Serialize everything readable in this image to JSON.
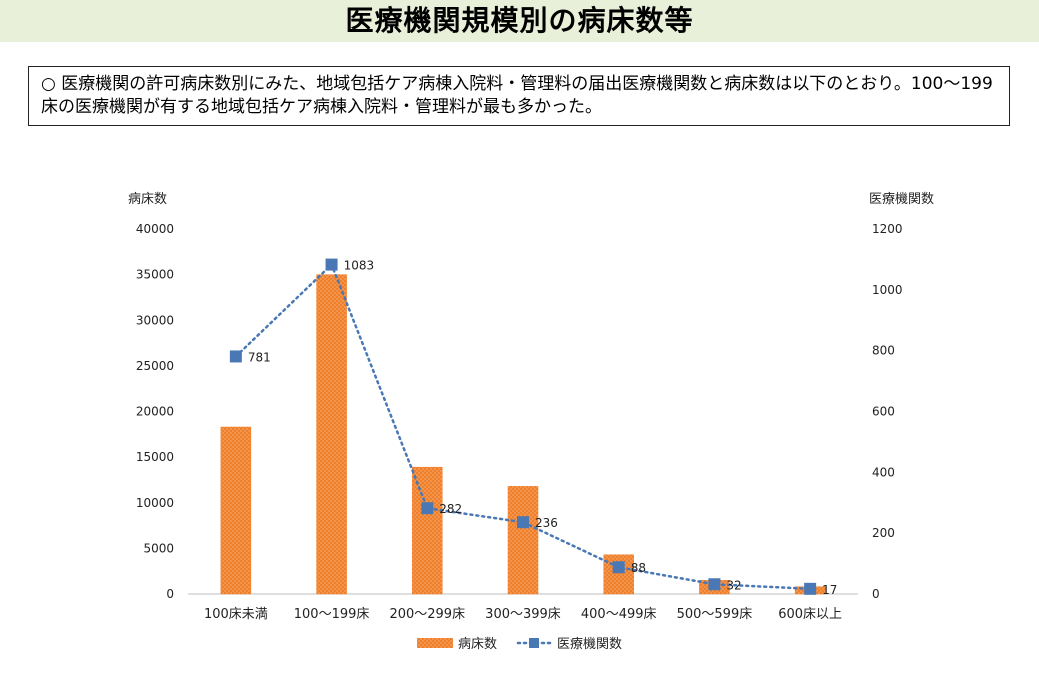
{
  "page": {
    "title": "医療機関規模別の病床数等",
    "summary": "○ 医療機関の許可病床数別にみた、地域包括ケア病棟入院料・管理料の届出医療機関数と病床数は以下のとおり。100～199床の医療機関が有する地域包括ケア病棟入院料・管理料が最も多かった。"
  },
  "chart_data": {
    "type": "bar",
    "categories": [
      "100床未満",
      "100～199床",
      "200～299床",
      "300～399床",
      "400～499床",
      "500～599床",
      "600床以上"
    ],
    "y_left_label": "病床数",
    "y_right_label": "医療機関数",
    "y_left_ticks": [
      "0",
      "5000",
      "10000",
      "15000",
      "20000",
      "25000",
      "30000",
      "35000",
      "40000"
    ],
    "y_right_ticks": [
      "0",
      "200",
      "400",
      "600",
      "800",
      "1000",
      "1200"
    ],
    "ylim_left": [
      0,
      40000
    ],
    "ylim_right": [
      0,
      1200
    ],
    "series": [
      {
        "name": "病床数",
        "type": "bar",
        "axis": "left",
        "color": "#f07f2a",
        "values": [
          18300,
          35000,
          13900,
          11800,
          4300,
          1500,
          800
        ]
      },
      {
        "name": "医療機関数",
        "type": "line",
        "axis": "right",
        "color": "#4a78b5",
        "line_style": "dotted",
        "values": [
          781,
          1083,
          282,
          236,
          88,
          32,
          17
        ],
        "labels": [
          "781",
          "1083",
          "282",
          "236",
          "88",
          "32",
          "17"
        ]
      }
    ],
    "legend_position": "bottom",
    "grid": false
  }
}
